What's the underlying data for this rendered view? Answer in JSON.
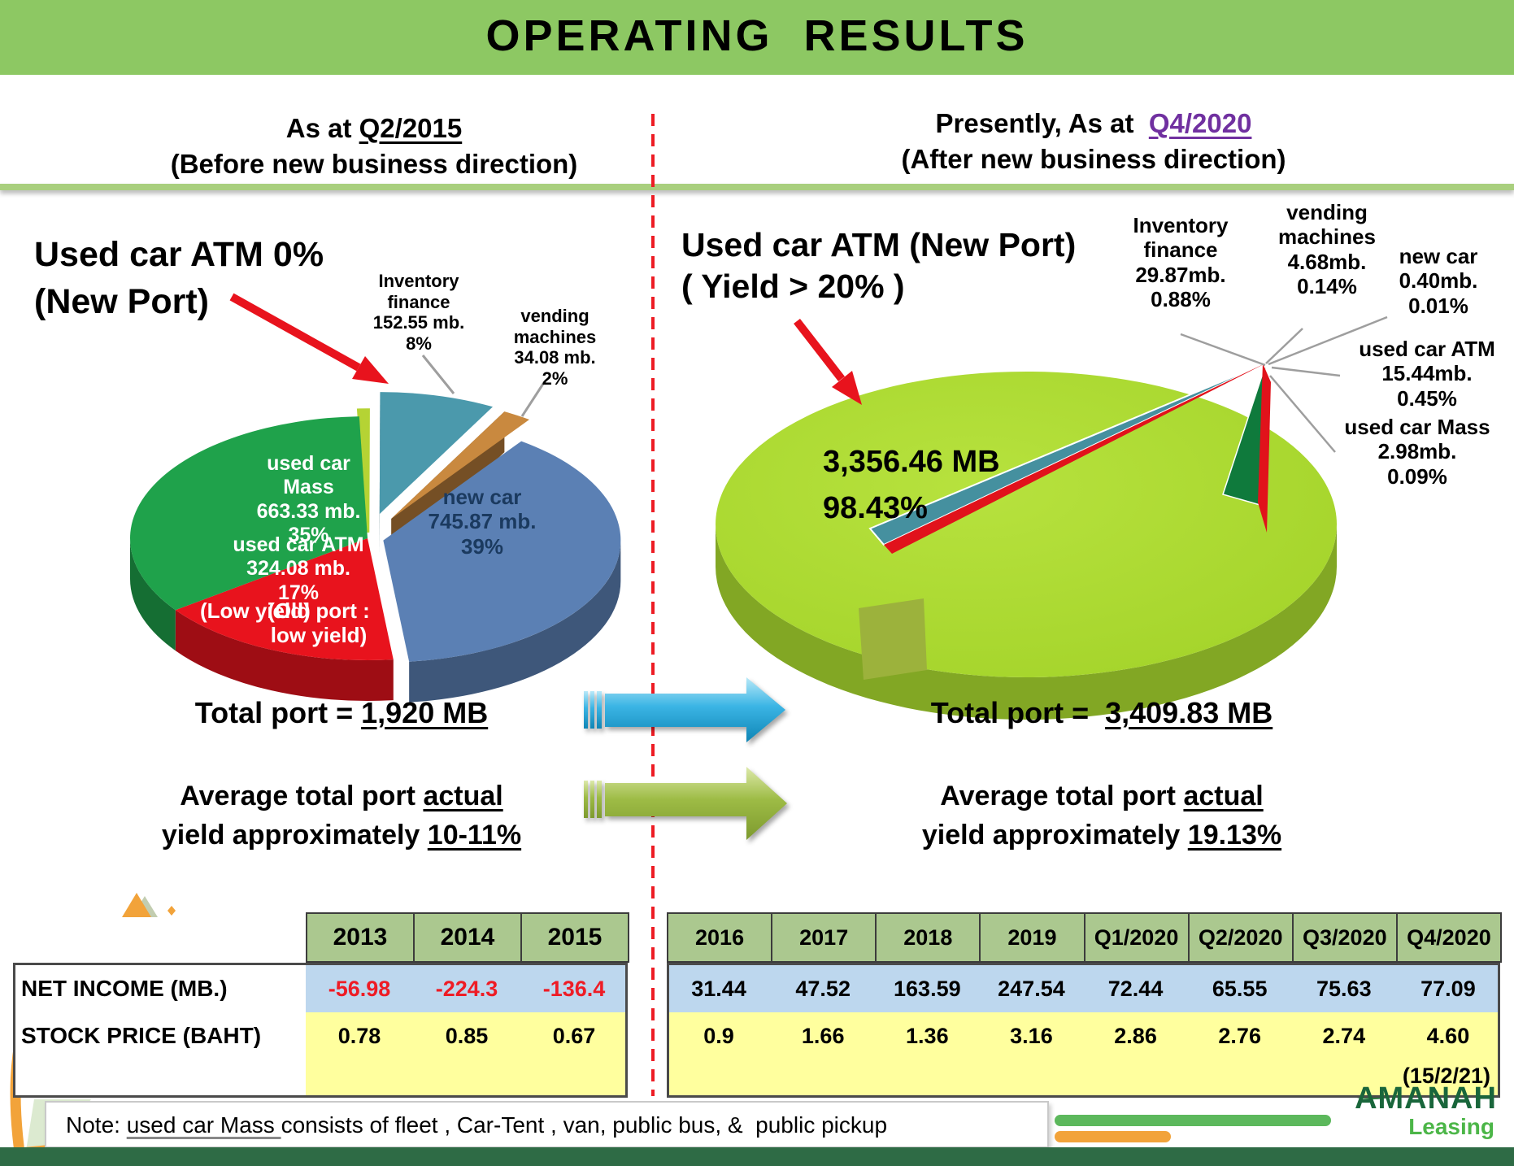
{
  "slide_title": "OPERATING  RESULTS",
  "panels": {
    "left": {
      "header_prefix": "As at ",
      "header_period": "Q2/2015",
      "header_sub": "(Before new business direction)",
      "annotation": "Used car ATM 0%\n(New Port)",
      "total_label": "Total port = ",
      "total_value": "1,920 MB",
      "avg_1a": "Average total port ",
      "avg_1b": "actual",
      "avg_2a": "yield approximately ",
      "avg_2b": "10-11%"
    },
    "right": {
      "header_prefix": "Presently, As at  ",
      "header_period": "Q4/2020",
      "period_color": "#7030a0",
      "header_sub": "(After new business direction)",
      "annotation": "Used car ATM (New Port)\n( Yield > 20% )",
      "total_label": "Total port =  ",
      "total_value": "3,409.83 MB",
      "avg_1a": "Average total port ",
      "avg_1b": "actual",
      "avg_2a": "yield approximately ",
      "avg_2b": "19.13%"
    }
  },
  "chart_data": [
    {
      "type": "pie",
      "name": "portfolio-before",
      "title": "As at Q2/2015 (Before new business direction)",
      "total_port_mb": "1,920",
      "slices": [
        {
          "name": "Used car ATM (New Port)",
          "value_mb": 0,
          "pct": 0,
          "color": "#b5d334",
          "label": ""
        },
        {
          "name": "Inventory finance",
          "value_mb": 152.55,
          "pct": 8,
          "color": "#4b99ac",
          "label": "Inventory\nfinance\n152.55 mb.\n8%"
        },
        {
          "name": "vending machines",
          "value_mb": 34.08,
          "pct": 2,
          "color": "#c9893f",
          "label": "vending\nmachines\n34.08 mb.\n2%"
        },
        {
          "name": "new car",
          "value_mb": 745.87,
          "pct": 39,
          "color": "#5b80b4",
          "label": "new car\n745.87 mb.\n39%"
        },
        {
          "name": "used car ATM",
          "value_mb": 324.08,
          "pct": 17,
          "color": "#e8131d",
          "label": "used car ATM\n324.08 mb.\n17%",
          "sub_label": "(Old port :\nlow yield)",
          "sub_label_overlay": "(Low yield)"
        },
        {
          "name": "used car Mass",
          "value_mb": 663.33,
          "pct": 35,
          "color": "#1fa24b",
          "label": "used car\nMass\n663.33 mb.\n35%"
        }
      ]
    },
    {
      "type": "pie",
      "name": "portfolio-after",
      "title": "Presently, As at Q4/2020 (After new business direction)",
      "total_port_mb": "3,409.83",
      "slices": [
        {
          "name": "Used car ATM (New Port)",
          "value_mb": 3356.46,
          "pct": 98.43,
          "color": "#a7d62e",
          "label": "3,356.46 MB\n98.43%"
        },
        {
          "name": "Inventory finance",
          "value_mb": 29.87,
          "pct": 0.88,
          "color": "#45909f",
          "label": "Inventory\nfinance\n29.87mb.\n0.88%"
        },
        {
          "name": "used car ATM",
          "value_mb": 15.44,
          "pct": 0.45,
          "color": "#e1121b",
          "label": "used car ATM\n15.44mb.\n0.45%"
        },
        {
          "name": "used car Mass",
          "value_mb": 2.98,
          "pct": 0.09,
          "color": "#0f7a3c",
          "label": "used car Mass\n2.98mb.\n0.09%"
        },
        {
          "name": "vending machines",
          "value_mb": 4.68,
          "pct": 0.14,
          "color": "#c9893f",
          "label": "vending\nmachines\n4.68mb.\n0.14%"
        },
        {
          "name": "new car",
          "value_mb": 0.4,
          "pct": 0.01,
          "color": "#5b80b4",
          "label": "new car\n0.40mb.\n0.01%"
        }
      ]
    },
    {
      "type": "table",
      "name": "results-before",
      "columns": [
        "2013",
        "2014",
        "2015"
      ],
      "rows": [
        {
          "label": "NET INCOME (MB.)",
          "values": [
            "-56.98",
            "-224.3",
            "-136.4"
          ],
          "value_color": "#ee1c25"
        },
        {
          "label": "STOCK PRICE (BAHT)",
          "values": [
            "0.78",
            "0.85",
            "0.67"
          ],
          "value_color": "#000000"
        }
      ],
      "row_colors": [
        "#bdd7ee",
        "#ffff9e"
      ]
    },
    {
      "type": "table",
      "name": "results-after",
      "columns": [
        "2016",
        "2017",
        "2018",
        "2019",
        "Q1/2020",
        "Q2/2020",
        "Q3/2020",
        "Q4/2020"
      ],
      "rows": [
        {
          "values": [
            "31.44",
            "47.52",
            "163.59",
            "247.54",
            "72.44",
            "65.55",
            "75.63",
            "77.09"
          ],
          "value_color": "#000000"
        },
        {
          "values": [
            "0.9",
            "1.66",
            "1.36",
            "3.16",
            "2.86",
            "2.76",
            "2.74",
            "4.60"
          ],
          "value_color": "#000000"
        }
      ],
      "row_colors": [
        "#bdd7ee",
        "#ffff9e"
      ],
      "footnote": "(15/2/21)"
    }
  ],
  "note": {
    "prefix": "Note: ",
    "underlined": "used car Mass ",
    "rest": "consists of fleet , Car-Tent , van, public bus, &  public pickup"
  },
  "logo": {
    "name": "AMANAH",
    "sub": "Leasing",
    "name_color": "#19663b",
    "sub_color": "#4cb648"
  },
  "colors": {
    "header_band": "#8dc863",
    "separator": "#a9cf7e",
    "divider_red": "#ed1c24",
    "table_header": "#abc88f",
    "negative_value": "#ee1c25",
    "bottom_bar": "#2e6b45",
    "flow_arrow_blue": "#3ab4e4",
    "flow_arrow_green": "#9dbb45"
  }
}
